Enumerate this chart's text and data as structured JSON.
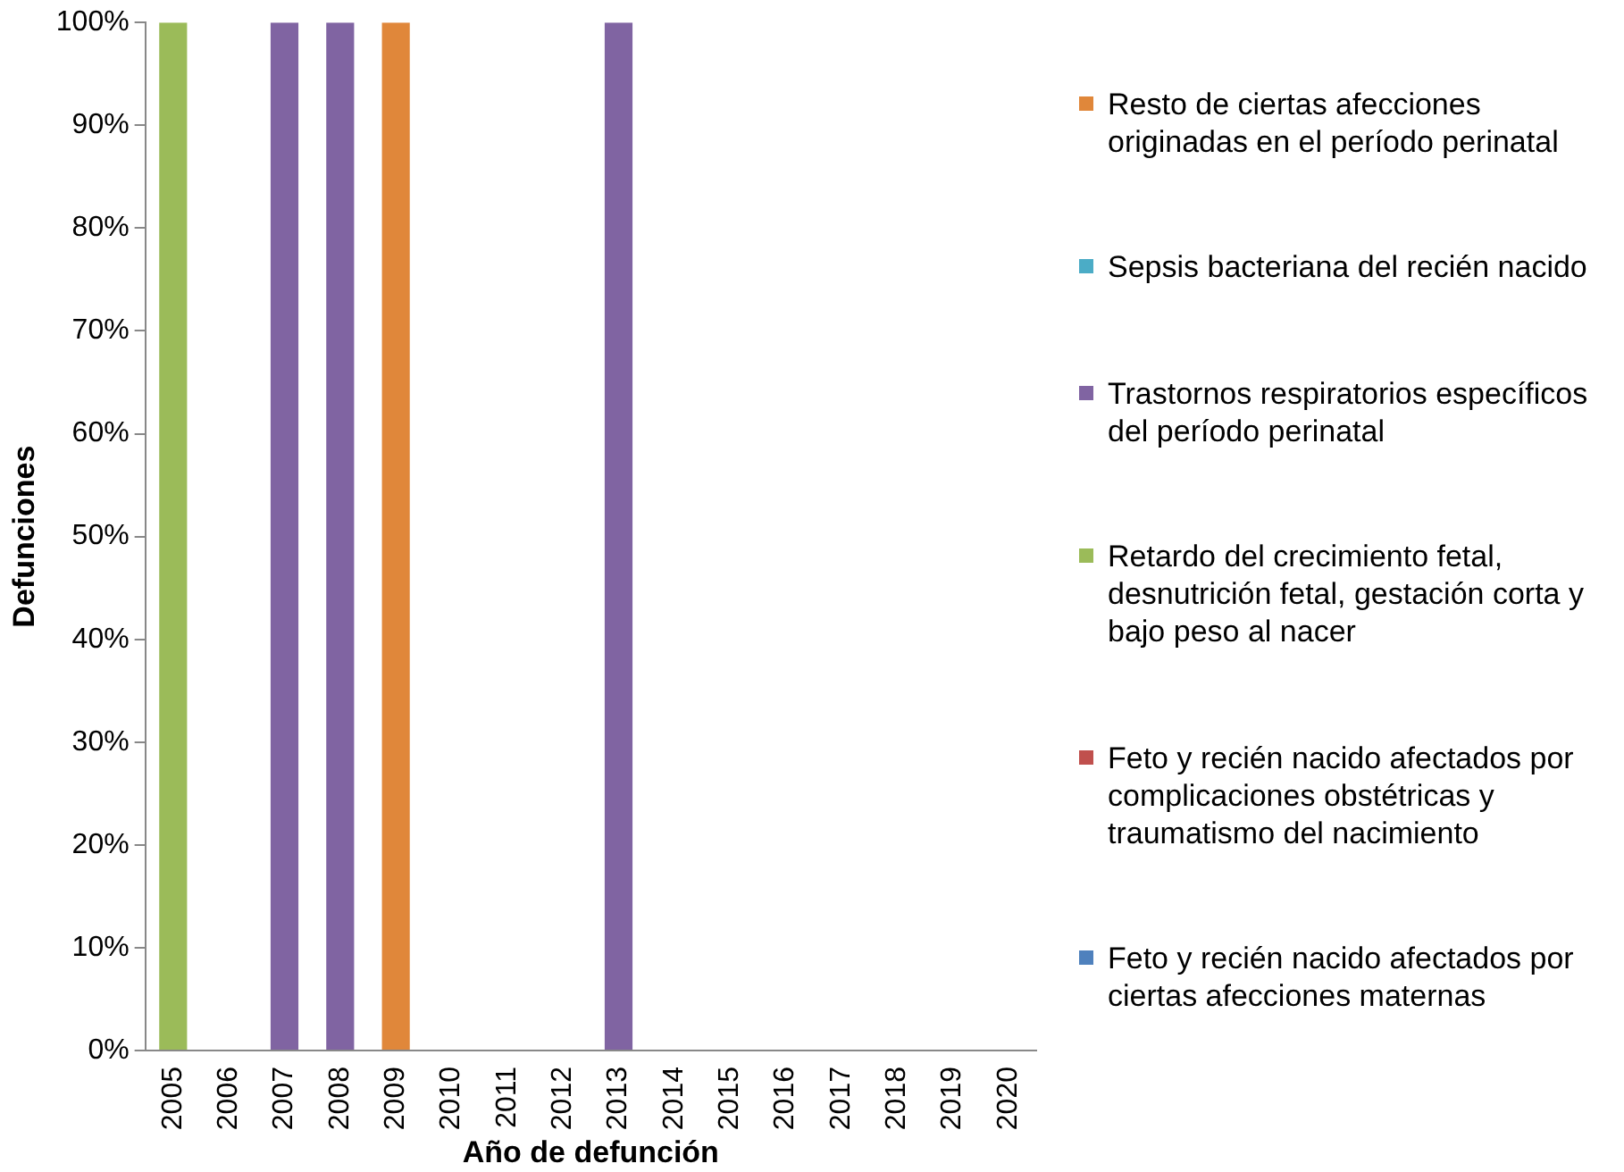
{
  "chart_data": {
    "type": "bar",
    "stacked": true,
    "xlabel": "Año de defunción",
    "ylabel": "Defunciones",
    "categories": [
      "2005",
      "2006",
      "2007",
      "2008",
      "2009",
      "2010",
      "2011",
      "2012",
      "2013",
      "2014",
      "2015",
      "2016",
      "2017",
      "2018",
      "2019",
      "2020"
    ],
    "series": [
      {
        "name": "Feto y recién nacido afectados por ciertas afecciones maternas",
        "color": "#4f81bd",
        "values": [
          0,
          0,
          0,
          0,
          0,
          0,
          0,
          0,
          0,
          0,
          0,
          0,
          0,
          0,
          0,
          0
        ]
      },
      {
        "name": "Feto y recién nacido afectados por complicaciones obstétricas y traumatismo del nacimiento",
        "color": "#c0504d",
        "values": [
          0,
          0,
          0,
          0,
          0,
          0,
          0,
          0,
          0,
          0,
          0,
          0,
          0,
          0,
          0,
          0
        ]
      },
      {
        "name": "Retardo del crecimiento fetal, desnutrición fetal, gestación corta y bajo peso al nacer",
        "color": "#9bbb59",
        "values": [
          100,
          0,
          0,
          0,
          0,
          0,
          0,
          0,
          0,
          0,
          0,
          0,
          0,
          0,
          0,
          0
        ]
      },
      {
        "name": "Trastornos respiratorios específicos del período perinatal",
        "color": "#8064a2",
        "values": [
          0,
          0,
          100,
          100,
          0,
          0,
          0,
          0,
          100,
          0,
          0,
          0,
          0,
          0,
          0,
          0
        ]
      },
      {
        "name": "Sepsis bacteriana del recién nacido",
        "color": "#4bacc6",
        "values": [
          0,
          0,
          0,
          0,
          0,
          0,
          0,
          0,
          0,
          0,
          0,
          0,
          0,
          0,
          0,
          0
        ]
      },
      {
        "name": "Resto de ciertas afecciones originadas en el período perinatal",
        "color": "#e0873a",
        "values": [
          0,
          0,
          0,
          0,
          100,
          0,
          0,
          0,
          0,
          0,
          0,
          0,
          0,
          0,
          0,
          0
        ]
      }
    ],
    "ylim": [
      0,
      100
    ],
    "yticks": [
      {
        "value": 0,
        "label": "0%"
      },
      {
        "value": 10,
        "label": "10%"
      },
      {
        "value": 20,
        "label": "20%"
      },
      {
        "value": 30,
        "label": "30%"
      },
      {
        "value": 40,
        "label": "40%"
      },
      {
        "value": 50,
        "label": "50%"
      },
      {
        "value": 60,
        "label": "60%"
      },
      {
        "value": 70,
        "label": "70%"
      },
      {
        "value": 80,
        "label": "80%"
      },
      {
        "value": 90,
        "label": "90%"
      },
      {
        "value": 100,
        "label": "100%"
      }
    ],
    "grid": false,
    "legend": "right"
  }
}
